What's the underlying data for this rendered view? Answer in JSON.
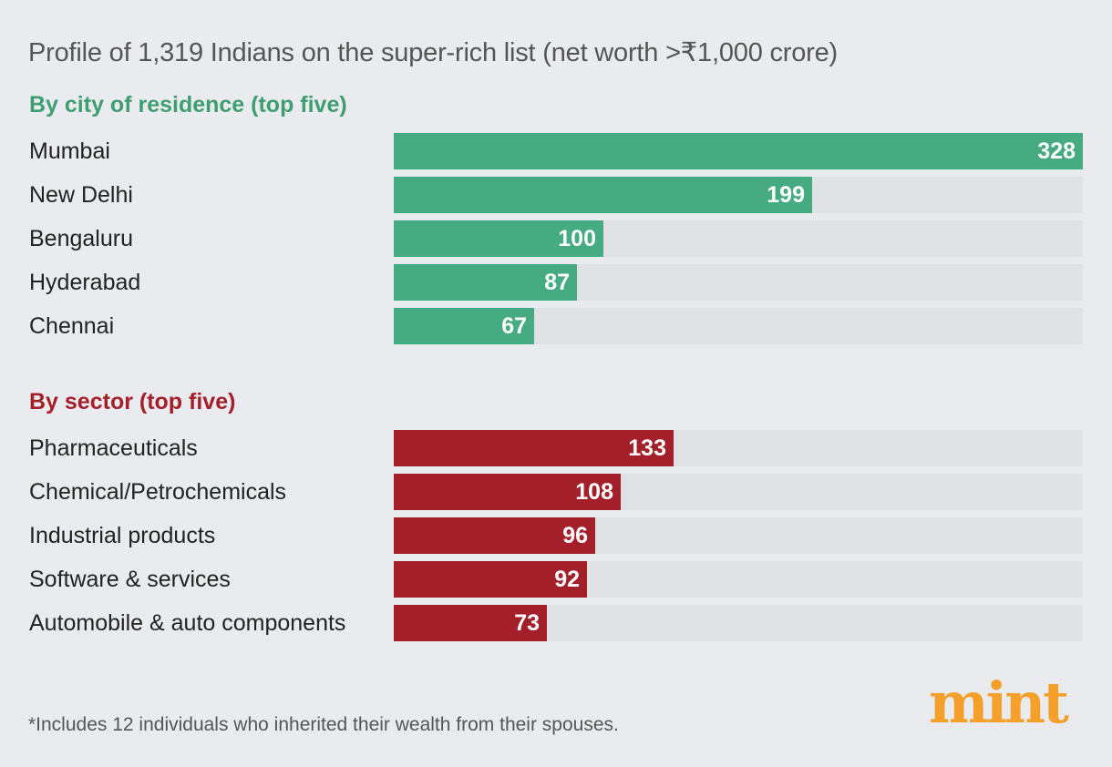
{
  "title": "Profile of 1,319 Indians on the super-rich list (net worth >₹1,000 crore)",
  "footnote": "*Includes 12 individuals who inherited their wealth from their spouses.",
  "logo": "mint",
  "colors": {
    "background": "#e9ebee",
    "city_bar": "#47ab81",
    "city_heading": "#3e9e72",
    "sector_bar": "#a3202a",
    "track": "#dfe1e5",
    "logo": "#f5a02a"
  },
  "chart_data": [
    {
      "type": "bar",
      "orientation": "horizontal",
      "title": "By city of residence (top five)",
      "categories": [
        "Mumbai",
        "New Delhi",
        "Bengaluru",
        "Hyderabad",
        "Chennai"
      ],
      "values": [
        328,
        199,
        100,
        87,
        67
      ],
      "xlim": [
        0,
        328
      ],
      "grid": false,
      "data_labels": true
    },
    {
      "type": "bar",
      "orientation": "horizontal",
      "title": "By sector (top five)",
      "categories": [
        "Pharmaceuticals",
        "Chemical/Petrochemicals",
        "Industrial products",
        "Software & services",
        "Automobile & auto components"
      ],
      "values": [
        133,
        108,
        96,
        92,
        73
      ],
      "xlim": [
        0,
        328
      ],
      "grid": false,
      "data_labels": true
    }
  ]
}
